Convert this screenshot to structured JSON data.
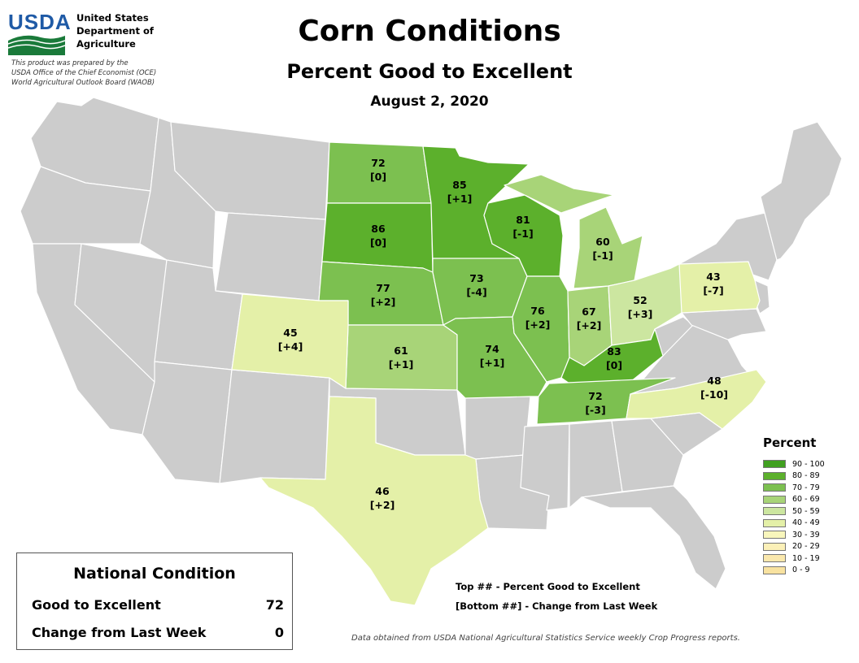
{
  "header": {
    "logo_text": "USDA",
    "dept_lines": [
      "United States",
      "Department of",
      "Agriculture"
    ],
    "credit_lines": [
      "This product was prepared by the",
      "USDA Office of the Chief Economist (OCE)",
      "World Agricultural Outlook Board (WAOB)"
    ],
    "title": "Corn Conditions",
    "subtitle": "Percent Good to Excellent",
    "date": "August 2, 2020"
  },
  "colors": {
    "no_data": "#cccccc",
    "state_border": "#ffffff",
    "c90": "#40a020",
    "c80": "#5cb02c",
    "c70": "#7cc050",
    "c60": "#a8d478",
    "c50": "#cce6a0",
    "c40": "#e4f0a8",
    "c30": "#f8f6bc",
    "c20": "#fbf0b8",
    "c10": "#fae8ad",
    "c0": "#f8e2a0"
  },
  "states": [
    {
      "name": "ND",
      "value": "72",
      "change": "[0]",
      "color": "#7cc050"
    },
    {
      "name": "SD",
      "value": "86",
      "change": "[0]",
      "color": "#5cb02c"
    },
    {
      "name": "NE",
      "value": "77",
      "change": "[+2]",
      "color": "#7cc050"
    },
    {
      "name": "KS",
      "value": "61",
      "change": "[+1]",
      "color": "#a8d478"
    },
    {
      "name": "CO",
      "value": "45",
      "change": "[+4]",
      "color": "#e4f0a8"
    },
    {
      "name": "TX",
      "value": "46",
      "change": "[+2]",
      "color": "#e4f0a8"
    },
    {
      "name": "MN",
      "value": "85",
      "change": "[+1]",
      "color": "#5cb02c"
    },
    {
      "name": "IA",
      "value": "73",
      "change": "[-4]",
      "color": "#7cc050"
    },
    {
      "name": "MO",
      "value": "74",
      "change": "[+1]",
      "color": "#7cc050"
    },
    {
      "name": "WI",
      "value": "81",
      "change": "[-1]",
      "color": "#5cb02c"
    },
    {
      "name": "IL",
      "value": "76",
      "change": "[+2]",
      "color": "#7cc050"
    },
    {
      "name": "MI",
      "value": "60",
      "change": "[-1]",
      "color": "#a8d478"
    },
    {
      "name": "IN",
      "value": "67",
      "change": "[+2]",
      "color": "#a8d478"
    },
    {
      "name": "OH",
      "value": "52",
      "change": "[+3]",
      "color": "#cce6a0"
    },
    {
      "name": "KY",
      "value": "83",
      "change": "[0]",
      "color": "#5cb02c"
    },
    {
      "name": "TN",
      "value": "72",
      "change": "[-3]",
      "color": "#7cc050"
    },
    {
      "name": "NC",
      "value": "48",
      "change": "[-10]",
      "color": "#e4f0a8"
    },
    {
      "name": "PA",
      "value": "43",
      "change": "[-7]",
      "color": "#e4f0a8"
    }
  ],
  "legend": {
    "title": "Percent",
    "items": [
      {
        "label": "90 - 100",
        "color": "#40a020"
      },
      {
        "label": "80 - 89",
        "color": "#5cb02c"
      },
      {
        "label": "70 - 79",
        "color": "#7cc050"
      },
      {
        "label": "60 - 69",
        "color": "#a8d478"
      },
      {
        "label": "50 - 59",
        "color": "#cce6a0"
      },
      {
        "label": "40 - 49",
        "color": "#e4f0a8"
      },
      {
        "label": "30 - 39",
        "color": "#f8f6bc"
      },
      {
        "label": "20 - 29",
        "color": "#fbf0b8"
      },
      {
        "label": "10 - 19",
        "color": "#fae8ad"
      },
      {
        "label": "0 - 9",
        "color": "#f8e2a0"
      }
    ]
  },
  "national": {
    "title": "National Condition",
    "good_label": "Good to Excellent",
    "good_value": "72",
    "change_label": "Change from Last Week",
    "change_value": "0"
  },
  "notes": {
    "top": "Top ## - Percent Good to Excellent",
    "bottom": "[Bottom ##] - Change from Last Week"
  },
  "source": "Data obtained from USDA National Agricultural Statistics Service weekly Crop Progress reports."
}
